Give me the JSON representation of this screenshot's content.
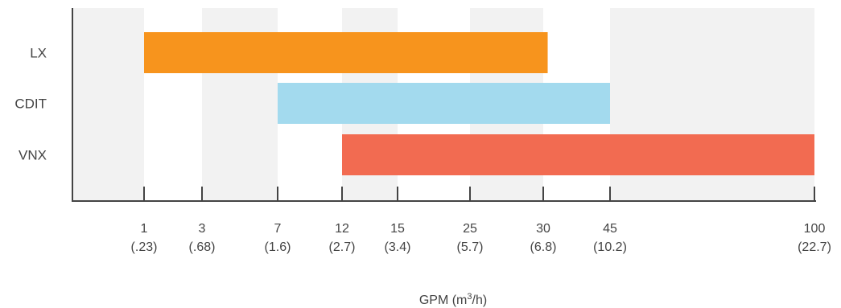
{
  "chart_data": {
    "type": "bar",
    "orientation": "horizontal-range",
    "categories": [
      "LX",
      "CDIT",
      "VNX"
    ],
    "ranges": [
      {
        "category": "LX",
        "start": 1,
        "end": 31,
        "color": "#F7941D"
      },
      {
        "category": "CDIT",
        "start": 7,
        "end": 45,
        "color": "#A3DAEE"
      },
      {
        "category": "VNX",
        "start": 12,
        "end": 100,
        "color": "#F26B51"
      }
    ],
    "ticks": [
      {
        "value": 1,
        "label": "1",
        "sublabel": "(.23)"
      },
      {
        "value": 3,
        "label": "3",
        "sublabel": "(.68)"
      },
      {
        "value": 7,
        "label": "7",
        "sublabel": "(1.6)"
      },
      {
        "value": 12,
        "label": "12",
        "sublabel": "(2.7)"
      },
      {
        "value": 15,
        "label": "15",
        "sublabel": "(3.4)"
      },
      {
        "value": 25,
        "label": "25",
        "sublabel": "(5.7)"
      },
      {
        "value": 30,
        "label": "30",
        "sublabel": "(6.8)"
      },
      {
        "value": 45,
        "label": "45",
        "sublabel": "(10.2)"
      },
      {
        "value": 100,
        "label": "100",
        "sublabel": "(22.7)"
      }
    ],
    "xlabel_main": "GPM (m",
    "xlabel_sup": "3",
    "xlabel_end": "/h)",
    "grid": "alternating shaded bands",
    "band_color": "#F2F2F2",
    "axis_color": "#444444"
  }
}
